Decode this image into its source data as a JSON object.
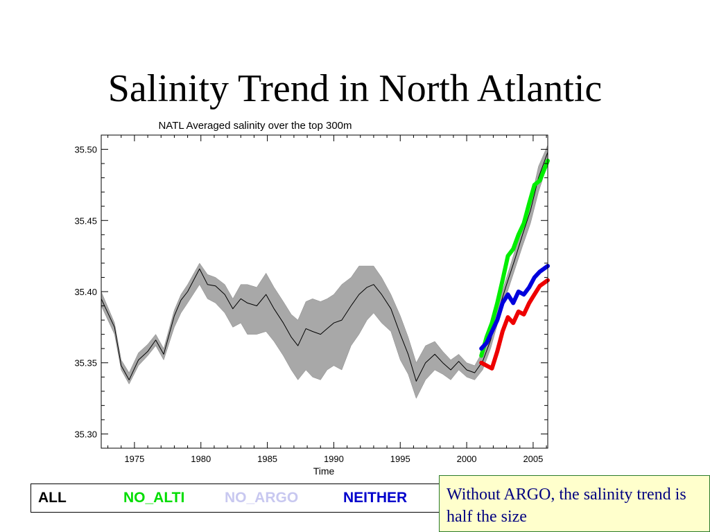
{
  "slide": {
    "title": "Salinity Trend in North Atlantic",
    "note": "Without ARGO, the salinity trend is half the size"
  },
  "legend": {
    "items": [
      {
        "label": "ALL",
        "color": "#000000"
      },
      {
        "label": "NO_ALTI",
        "color": "#00dd00"
      },
      {
        "label": "NO_ARGO",
        "color": "#c8c8f0"
      },
      {
        "label": "NEITHER",
        "color": "#0000cc"
      }
    ]
  },
  "chart_data": {
    "type": "line",
    "title": "NATL Averaged salinity over the top 300m",
    "xlabel": "Time",
    "ylabel": "",
    "xlim": [
      1972.5,
      2006.1
    ],
    "ylim": [
      35.29,
      35.51
    ],
    "xticks": [
      1975,
      1980,
      1985,
      1990,
      1995,
      2000,
      2005
    ],
    "yticks": [
      35.3,
      35.35,
      35.4,
      35.45,
      35.5
    ],
    "ytick_labels": [
      "35.30",
      "35.35",
      "35.40",
      "35.45",
      "35.50"
    ],
    "grid": false,
    "band": {
      "color": "#a8a8a8",
      "x": [
        1972.5,
        1973.5,
        1974.0,
        1974.6,
        1975.3,
        1976.0,
        1976.6,
        1977.2,
        1978.0,
        1978.5,
        1979.0,
        1979.9,
        1980.5,
        1981.1,
        1981.8,
        1982.4,
        1983.0,
        1983.5,
        1984.2,
        1984.9,
        1985.5,
        1986.2,
        1986.8,
        1987.3,
        1987.9,
        1988.4,
        1989.0,
        1989.5,
        1990.0,
        1990.6,
        1991.3,
        1991.9,
        1992.5,
        1993.0,
        1993.6,
        1994.3,
        1995.0,
        1995.6,
        1996.2,
        1996.9,
        1997.6,
        1998.2,
        1998.8,
        1999.4,
        2000.0,
        2000.6,
        2001.2,
        2001.8,
        2002.4,
        2003.0,
        2003.6,
        2004.2,
        2004.8,
        2005.4,
        2006.1
      ],
      "lower": [
        35.39,
        35.37,
        35.345,
        35.335,
        35.348,
        35.355,
        35.362,
        35.352,
        35.375,
        35.385,
        35.392,
        35.405,
        35.395,
        35.392,
        35.385,
        35.375,
        35.378,
        35.37,
        35.37,
        35.372,
        35.365,
        35.355,
        35.345,
        35.338,
        35.345,
        35.34,
        35.338,
        35.345,
        35.348,
        35.345,
        35.362,
        35.37,
        35.38,
        35.385,
        35.378,
        35.372,
        35.352,
        35.342,
        35.325,
        35.338,
        35.345,
        35.342,
        35.338,
        35.345,
        35.34,
        35.338,
        35.345,
        35.36,
        35.38,
        35.398,
        35.415,
        35.432,
        35.448,
        35.47,
        35.49
      ],
      "upper": [
        35.4,
        35.378,
        35.352,
        35.343,
        35.357,
        35.363,
        35.37,
        35.36,
        35.387,
        35.398,
        35.405,
        35.42,
        35.412,
        35.41,
        35.405,
        35.395,
        35.405,
        35.405,
        35.403,
        35.413,
        35.403,
        35.393,
        35.384,
        35.38,
        35.393,
        35.395,
        35.393,
        35.395,
        35.398,
        35.405,
        35.41,
        35.418,
        35.418,
        35.418,
        35.41,
        35.398,
        35.383,
        35.368,
        35.35,
        35.362,
        35.365,
        35.358,
        35.352,
        35.356,
        35.35,
        35.348,
        35.358,
        35.37,
        35.392,
        35.41,
        35.428,
        35.445,
        35.463,
        35.488,
        35.503
      ]
    },
    "series": [
      {
        "name": "ALL",
        "color": "#000000",
        "width": 1,
        "x": [
          1972.5,
          1973.5,
          1974.0,
          1974.6,
          1975.3,
          1976.0,
          1976.6,
          1977.2,
          1978.0,
          1978.5,
          1979.0,
          1979.9,
          1980.5,
          1981.1,
          1981.8,
          1982.4,
          1983.0,
          1983.5,
          1984.2,
          1984.9,
          1985.5,
          1986.2,
          1986.8,
          1987.3,
          1987.9,
          1988.4,
          1989.0,
          1989.5,
          1990.0,
          1990.6,
          1991.3,
          1991.9,
          1992.5,
          1993.0,
          1993.6,
          1994.3,
          1995.0,
          1995.6,
          1996.2,
          1996.9,
          1997.6,
          1998.2,
          1998.8,
          1999.4,
          2000.0,
          2000.6,
          2001.2,
          2001.8,
          2002.4,
          2003.0,
          2003.6,
          2004.2,
          2004.8,
          2005.4,
          2006.1
        ],
        "y": [
          35.395,
          35.375,
          35.348,
          35.338,
          35.352,
          35.358,
          35.366,
          35.356,
          35.383,
          35.394,
          35.4,
          35.416,
          35.405,
          35.404,
          35.398,
          35.388,
          35.395,
          35.392,
          35.39,
          35.398,
          35.388,
          35.378,
          35.368,
          35.362,
          35.374,
          35.372,
          35.37,
          35.374,
          35.378,
          35.38,
          35.39,
          35.398,
          35.403,
          35.405,
          35.398,
          35.388,
          35.37,
          35.356,
          35.337,
          35.35,
          35.356,
          35.35,
          35.345,
          35.351,
          35.345,
          35.343,
          35.351,
          35.366,
          35.387,
          35.405,
          35.422,
          35.44,
          35.457,
          35.48,
          35.498
        ]
      },
      {
        "name": "NO_ALTI",
        "color": "#00ee00",
        "width": 6,
        "x": [
          2001.1,
          2001.5,
          2001.9,
          2002.3,
          2002.7,
          2003.1,
          2003.5,
          2003.9,
          2004.3,
          2004.7,
          2005.1,
          2005.5,
          2006.1
        ],
        "y": [
          35.355,
          35.368,
          35.378,
          35.392,
          35.408,
          35.425,
          35.43,
          35.44,
          35.448,
          35.462,
          35.475,
          35.478,
          35.492
        ]
      },
      {
        "name": "NEITHER",
        "color": "#0000dd",
        "width": 6,
        "x": [
          2001.1,
          2001.5,
          2001.9,
          2002.3,
          2002.7,
          2003.1,
          2003.5,
          2003.9,
          2004.3,
          2004.7,
          2005.1,
          2005.5,
          2006.1
        ],
        "y": [
          35.36,
          35.364,
          35.372,
          35.38,
          35.392,
          35.398,
          35.392,
          35.4,
          35.398,
          35.403,
          35.41,
          35.414,
          35.418
        ]
      },
      {
        "name": "NO_ARGO",
        "color": "#ee0000",
        "width": 6,
        "x": [
          2001.1,
          2001.5,
          2001.9,
          2002.3,
          2002.7,
          2003.1,
          2003.5,
          2003.9,
          2004.3,
          2004.7,
          2005.1,
          2005.5,
          2006.1
        ],
        "y": [
          35.35,
          35.348,
          35.346,
          35.358,
          35.372,
          35.382,
          35.378,
          35.386,
          35.384,
          35.392,
          35.398,
          35.404,
          35.408
        ]
      }
    ]
  }
}
